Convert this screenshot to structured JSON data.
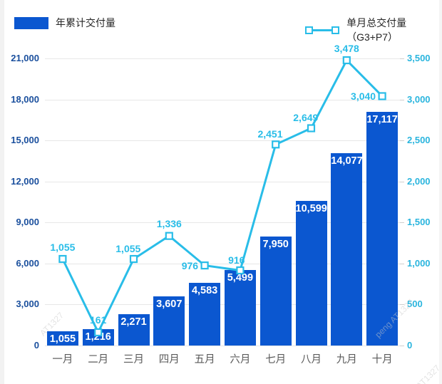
{
  "legend": {
    "bar": {
      "label": "年累计交付量"
    },
    "line": {
      "label": "单月总交付量（G3+P7）"
    }
  },
  "colors": {
    "bar": "#0b57d0",
    "line": "#29bde8",
    "bar_value_label": "#ffffff",
    "line_value_label": "#29bde8",
    "left_axis_label": "#1a4f9d",
    "right_axis_label": "#2ab5de",
    "x_axis_label": "#5a5a5a",
    "grid": "#e7e7e7",
    "legend_text": "#262626",
    "watermark": "#c9c9c9"
  },
  "watermarks": [
    "AT1327",
    "peng AT1327",
    "AT1327"
  ],
  "chart_data": {
    "type": "bar+line",
    "title": "",
    "categories": [
      "一月",
      "二月",
      "三月",
      "四月",
      "五月",
      "六月",
      "七月",
      "八月",
      "九月",
      "十月"
    ],
    "series": [
      {
        "name": "年累计交付量",
        "type": "bar",
        "axis": "left",
        "values": [
          1055,
          1216,
          2271,
          3607,
          4583,
          5499,
          7950,
          10599,
          14077,
          17117
        ],
        "labels": [
          "1,055",
          "1,216",
          "2,271",
          "3,607",
          "4,583",
          "5,499",
          "7,950",
          "10,599",
          "14,077",
          "17,117"
        ]
      },
      {
        "name": "单月总交付量（G3+P7）",
        "type": "line",
        "axis": "right",
        "values": [
          1055,
          161,
          1055,
          1336,
          976,
          916,
          2451,
          2649,
          3478,
          3040
        ],
        "labels": [
          "1,055",
          "161",
          "1,055",
          "1,336",
          "976",
          "916",
          "2,451",
          "2,649",
          "3,478",
          "3,040"
        ],
        "label_anchor": [
          "above",
          "above",
          "above-left",
          "above",
          "left",
          "above-left",
          "above-left",
          "above-left",
          "above",
          "left"
        ]
      }
    ],
    "left_axis": {
      "min": 0,
      "max": 21000,
      "step": 3000,
      "ticks": [
        "0",
        "3,000",
        "6,000",
        "9,000",
        "12,000",
        "15,000",
        "18,000",
        "21,000"
      ]
    },
    "right_axis": {
      "min": 0,
      "max": 3500,
      "step": 500,
      "ticks": [
        "0",
        "500",
        "1,000",
        "1,500",
        "2,000",
        "2,500",
        "3,000",
        "3,500"
      ]
    },
    "grid": true,
    "legend_position": "top"
  }
}
